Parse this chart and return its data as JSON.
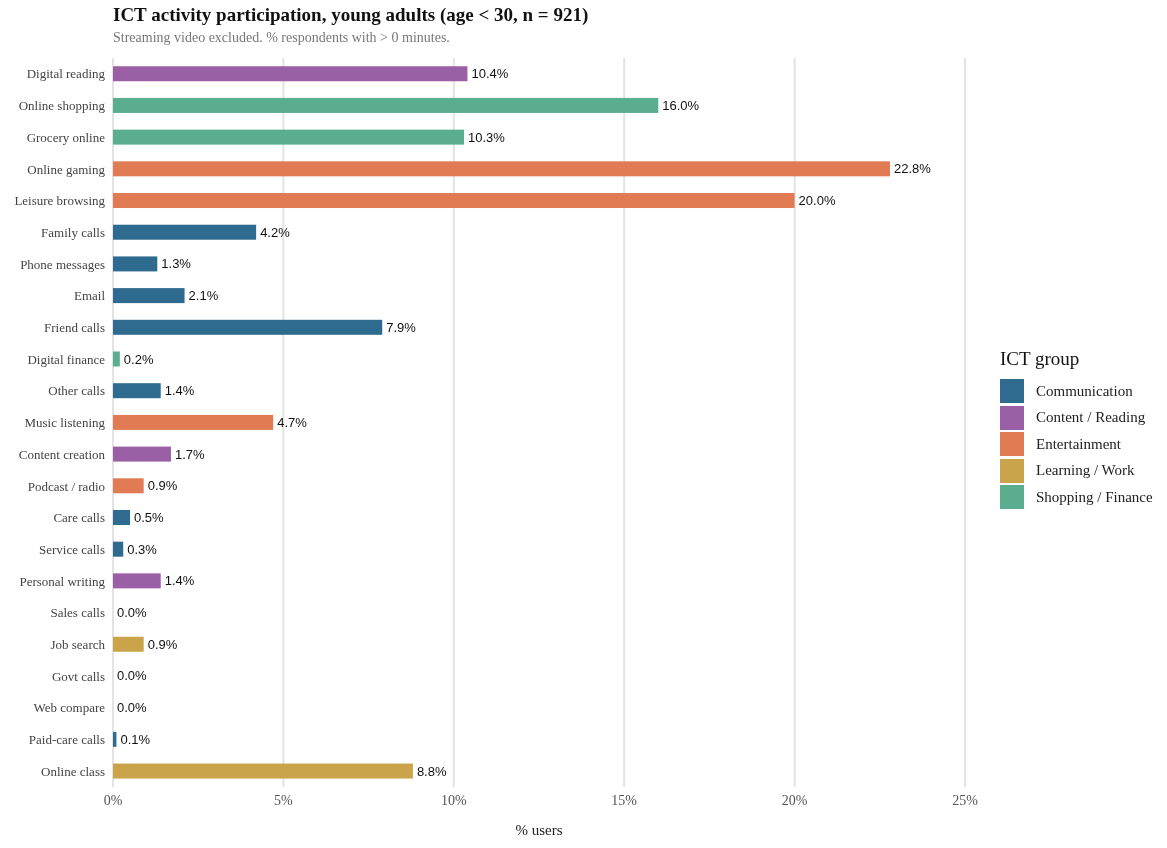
{
  "chart_data": {
    "type": "bar",
    "orientation": "horizontal",
    "stacked": true,
    "title": "ICT activity participation, young adults (age < 30, n = 921)",
    "subtitle": "Streaming video excluded. % respondents with > 0 minutes.",
    "xlabel": "% users",
    "legend_title": "ICT group",
    "legend": "right",
    "grid": "x",
    "categories": [
      "Digital reading",
      "Online shopping",
      "Grocery online",
      "Online gaming",
      "Leisure browsing",
      "Family calls",
      "Phone messages",
      "Email",
      "Friend calls",
      "Digital finance",
      "Other calls",
      "Music listening",
      "Content creation",
      "Podcast / radio",
      "Care calls",
      "Service calls",
      "Personal writing",
      "Sales calls",
      "Job search",
      "Govt calls",
      "Web compare",
      "Paid-care calls",
      "Online class"
    ],
    "xlim": [
      0,
      25
    ],
    "xticks": [
      {
        "value": 0,
        "label": "0%"
      },
      {
        "value": 5,
        "label": "5%"
      },
      {
        "value": 10,
        "label": "10%"
      },
      {
        "value": 15,
        "label": "15%"
      },
      {
        "value": 20,
        "label": "20%"
      },
      {
        "value": 25,
        "label": "25%"
      }
    ],
    "series": [
      {
        "name": "Communication",
        "color": "#2e6b8e",
        "values": [
          null,
          null,
          null,
          null,
          null,
          4.2,
          1.3,
          2.1,
          7.9,
          null,
          1.4,
          null,
          null,
          null,
          0.5,
          0.3,
          null,
          0.0,
          null,
          0.0,
          null,
          0.1,
          null
        ],
        "value_labels": [
          null,
          null,
          null,
          null,
          null,
          "4.2%",
          "1.3%",
          "2.1%",
          "7.9%",
          null,
          "1.4%",
          null,
          null,
          null,
          "0.5%",
          "0.3%",
          null,
          "0.0%",
          null,
          "0.0%",
          null,
          "0.1%",
          null
        ]
      },
      {
        "name": "Content / Reading",
        "color": "#9b5fa5",
        "values": [
          10.4,
          null,
          null,
          null,
          null,
          null,
          null,
          null,
          null,
          null,
          null,
          null,
          1.7,
          null,
          null,
          null,
          1.4,
          null,
          null,
          null,
          null,
          null,
          null
        ],
        "value_labels": [
          "10.4%",
          null,
          null,
          null,
          null,
          null,
          null,
          null,
          null,
          null,
          null,
          null,
          "1.7%",
          null,
          null,
          null,
          "1.4%",
          null,
          null,
          null,
          null,
          null,
          null
        ]
      },
      {
        "name": "Entertainment",
        "color": "#e07b54",
        "values": [
          null,
          null,
          null,
          22.8,
          20.0,
          null,
          null,
          null,
          null,
          null,
          null,
          4.7,
          null,
          0.9,
          null,
          null,
          null,
          null,
          null,
          null,
          null,
          null,
          null
        ],
        "value_labels": [
          null,
          null,
          null,
          "22.8%",
          "20.0%",
          null,
          null,
          null,
          null,
          null,
          null,
          "4.7%",
          null,
          "0.9%",
          null,
          null,
          null,
          null,
          null,
          null,
          null,
          null,
          null
        ]
      },
      {
        "name": "Learning / Work",
        "color": "#c9a44a",
        "values": [
          null,
          null,
          null,
          null,
          null,
          null,
          null,
          null,
          null,
          null,
          null,
          null,
          null,
          null,
          null,
          null,
          null,
          null,
          0.9,
          null,
          null,
          null,
          8.8
        ],
        "value_labels": [
          null,
          null,
          null,
          null,
          null,
          null,
          null,
          null,
          null,
          null,
          null,
          null,
          null,
          null,
          null,
          null,
          null,
          null,
          "0.9%",
          null,
          null,
          null,
          "8.8%"
        ]
      },
      {
        "name": "Shopping / Finance",
        "color": "#5aae8f",
        "values": [
          null,
          16.0,
          10.3,
          null,
          null,
          null,
          null,
          null,
          null,
          0.2,
          null,
          null,
          null,
          null,
          null,
          null,
          null,
          null,
          null,
          null,
          0.0,
          null,
          null
        ],
        "value_labels": [
          null,
          "16.0%",
          "10.3%",
          null,
          null,
          null,
          null,
          null,
          null,
          "0.2%",
          null,
          null,
          null,
          null,
          null,
          null,
          null,
          null,
          null,
          null,
          "0.0%",
          null,
          null
        ]
      }
    ]
  }
}
